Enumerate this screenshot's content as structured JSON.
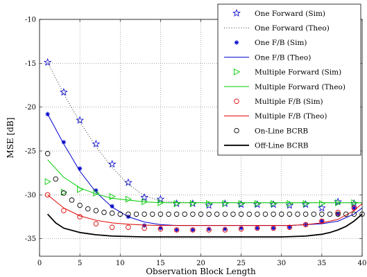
{
  "chart_data": {
    "type": "line",
    "title": "",
    "xlabel": "Observation Block Length",
    "ylabel": "MSE [dB]",
    "xlim": [
      0,
      40
    ],
    "ylim": [
      -37,
      -10
    ],
    "xticks": [
      0,
      5,
      10,
      15,
      20,
      25,
      30,
      35,
      40
    ],
    "yticks": [
      -35,
      -30,
      -25,
      -20,
      -15,
      -10
    ],
    "grid": "dotted",
    "legend_position": "top-right",
    "series": [
      {
        "name": "One Forward (Sim)",
        "style": "marker",
        "marker": "star",
        "color": "#0000cc",
        "x": [
          1,
          3,
          5,
          7,
          9,
          11,
          13,
          15,
          17,
          19,
          21,
          23,
          25,
          27,
          29,
          31,
          33,
          35,
          37,
          39
        ],
        "y": [
          -14.9,
          -18.3,
          -21.5,
          -24.2,
          -26.5,
          -28.6,
          -30.3,
          -30.5,
          -31.0,
          -31.0,
          -31.2,
          -31.0,
          -31.1,
          -31.1,
          -31.1,
          -31.2,
          -31.1,
          -31.5,
          -30.8,
          -31.0
        ]
      },
      {
        "name": "One Forward (Theo)",
        "style": "line",
        "dash": "1,2.5",
        "color": "#333333",
        "x": [
          1,
          3,
          5,
          7,
          9,
          11,
          13,
          15,
          17,
          20,
          25,
          30,
          35,
          40
        ],
        "y": [
          -14.9,
          -18.5,
          -21.7,
          -24.5,
          -26.9,
          -28.8,
          -30.1,
          -30.7,
          -30.85,
          -30.9,
          -30.9,
          -30.9,
          -30.9,
          -30.9
        ]
      },
      {
        "name": "One F/B (Sim)",
        "style": "marker",
        "marker": "asterisk",
        "color": "#0000cc",
        "x": [
          1,
          3,
          5,
          7,
          9,
          11,
          13,
          15,
          17,
          19,
          21,
          23,
          25,
          27,
          29,
          31,
          33,
          35,
          37,
          39
        ],
        "y": [
          -20.8,
          -24.0,
          -27.0,
          -29.5,
          -31.3,
          -32.5,
          -33.5,
          -33.8,
          -34.0,
          -34.0,
          -33.9,
          -33.9,
          -33.8,
          -33.8,
          -33.8,
          -33.7,
          -33.4,
          -33.0,
          -32.2,
          -31.5
        ]
      },
      {
        "name": "One F/B (Theo)",
        "style": "line",
        "color": "#0000cc",
        "x": [
          1,
          3,
          5,
          7,
          9,
          11,
          13,
          15,
          17,
          19,
          21,
          23,
          25,
          27,
          29,
          31,
          33,
          35,
          37,
          39,
          40
        ],
        "y": [
          -20.8,
          -24.2,
          -27.3,
          -29.7,
          -31.4,
          -32.5,
          -33.1,
          -33.4,
          -33.5,
          -33.5,
          -33.5,
          -33.5,
          -33.5,
          -33.5,
          -33.5,
          -33.5,
          -33.4,
          -33.3,
          -33.0,
          -32.2,
          -31.5
        ]
      },
      {
        "name": "Multiple Forward (Sim)",
        "style": "marker",
        "marker": "triangle-right",
        "color": "#00cc00",
        "x": [
          1,
          3,
          5,
          7,
          9,
          11,
          13,
          15,
          17,
          19,
          21,
          23,
          25,
          27,
          29,
          31,
          33,
          35,
          37,
          39
        ],
        "y": [
          -28.5,
          -29.7,
          -29.4,
          -29.8,
          -30.2,
          -30.5,
          -30.8,
          -30.9,
          -31.0,
          -31.0,
          -31.0,
          -31.0,
          -31.0,
          -31.0,
          -31.0,
          -31.0,
          -31.0,
          -31.0,
          -30.9,
          -30.9
        ]
      },
      {
        "name": "Multiple Forward (Theo)",
        "style": "line",
        "color": "#00cc00",
        "x": [
          1,
          3,
          5,
          7,
          9,
          11,
          13,
          15,
          17,
          20,
          25,
          30,
          35,
          40
        ],
        "y": [
          -26.0,
          -28.0,
          -29.2,
          -29.9,
          -30.4,
          -30.6,
          -30.8,
          -30.9,
          -30.9,
          -30.9,
          -30.9,
          -30.9,
          -30.9,
          -30.9
        ]
      },
      {
        "name": "Multiple F/B (Sim)",
        "style": "marker",
        "marker": "circle",
        "color": "#e00000",
        "x": [
          1,
          3,
          5,
          7,
          9,
          11,
          13,
          15,
          17,
          19,
          21,
          23,
          25,
          27,
          29,
          31,
          33,
          35,
          37,
          39
        ],
        "y": [
          -30.0,
          -31.8,
          -32.5,
          -33.3,
          -33.7,
          -33.7,
          -33.8,
          -33.9,
          -34.0,
          -34.0,
          -34.0,
          -34.0,
          -33.9,
          -33.8,
          -33.8,
          -33.7,
          -33.4,
          -33.0,
          -32.0,
          -31.5
        ]
      },
      {
        "name": "Multiple F/B (Theo)",
        "style": "line",
        "color": "#e00000",
        "x": [
          1,
          3,
          5,
          7,
          9,
          11,
          13,
          15,
          17,
          19,
          21,
          23,
          25,
          27,
          29,
          31,
          33,
          35,
          37,
          39,
          40
        ],
        "y": [
          -30.0,
          -31.5,
          -32.4,
          -32.9,
          -33.2,
          -33.35,
          -33.45,
          -33.5,
          -33.5,
          -33.5,
          -33.5,
          -33.5,
          -33.5,
          -33.5,
          -33.5,
          -33.5,
          -33.4,
          -33.2,
          -32.8,
          -31.8,
          -31.0
        ]
      },
      {
        "name": "On-Line BCRB",
        "style": "marker",
        "marker": "circle",
        "color": "#000000",
        "x": [
          1,
          2,
          3,
          4,
          5,
          6,
          7,
          8,
          9,
          10,
          11,
          12,
          13,
          14,
          15,
          16,
          17,
          18,
          19,
          20,
          21,
          22,
          23,
          24,
          25,
          26,
          27,
          28,
          29,
          30,
          31,
          32,
          33,
          34,
          35,
          36,
          37,
          38,
          39,
          40
        ],
        "y": [
          -25.3,
          -28.2,
          -29.8,
          -30.6,
          -31.2,
          -31.6,
          -31.8,
          -32.0,
          -32.1,
          -32.2,
          -32.2,
          -32.2,
          -32.2,
          -32.2,
          -32.2,
          -32.2,
          -32.2,
          -32.2,
          -32.2,
          -32.2,
          -32.2,
          -32.2,
          -32.2,
          -32.2,
          -32.2,
          -32.2,
          -32.2,
          -32.2,
          -32.2,
          -32.2,
          -32.2,
          -32.2,
          -32.2,
          -32.2,
          -32.2,
          -32.2,
          -32.2,
          -32.2,
          -32.2,
          -32.2
        ]
      },
      {
        "name": "Off-Line BCRB",
        "style": "line",
        "width": 1.8,
        "color": "#000000",
        "x": [
          1,
          2,
          3,
          5,
          7,
          9,
          11,
          13,
          15,
          20,
          25,
          30,
          33,
          35,
          36,
          37,
          38,
          39,
          40
        ],
        "y": [
          -32.2,
          -33.2,
          -33.8,
          -34.3,
          -34.55,
          -34.7,
          -34.75,
          -34.8,
          -34.8,
          -34.8,
          -34.8,
          -34.8,
          -34.7,
          -34.5,
          -34.3,
          -34.0,
          -33.6,
          -33.0,
          -32.2
        ]
      }
    ]
  }
}
